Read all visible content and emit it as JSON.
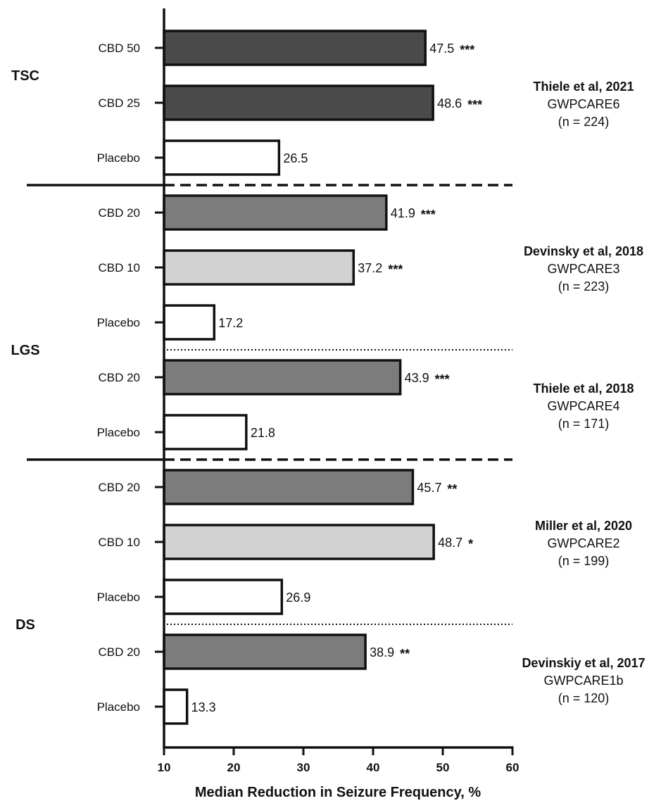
{
  "chart_data": {
    "type": "bar",
    "orientation": "horizontal",
    "xlabel": "Median Reduction in Seizure Frequency, %",
    "xlim": [
      10,
      60
    ],
    "xticks": [
      "10",
      "20",
      "30",
      "40",
      "50",
      "60"
    ],
    "bar_colors": {
      "high": "#4a4a4a",
      "mid": "#7c7c7c",
      "light": "#d2d2d2",
      "placebo": "#ffffff"
    },
    "groups": [
      {
        "label": "TSC",
        "studies": [
          {
            "author": "Thiele et al, 2021",
            "trial": "GWPCARE6",
            "n": "(n = 224)",
            "bars": [
              {
                "category": "CBD 50",
                "value": 47.5,
                "value_label": "47.5",
                "sig": "***",
                "fill": "high"
              },
              {
                "category": "CBD 25",
                "value": 48.6,
                "value_label": "48.6",
                "sig": "***",
                "fill": "high"
              },
              {
                "category": "Placebo",
                "value": 26.5,
                "value_label": "26.5",
                "sig": "",
                "fill": "placebo"
              }
            ]
          }
        ]
      },
      {
        "label": "LGS",
        "studies": [
          {
            "author": "Devinsky et al, 2018",
            "trial": "GWPCARE3",
            "n": "(n = 223)",
            "bars": [
              {
                "category": "CBD 20",
                "value": 41.9,
                "value_label": "41.9",
                "sig": "***",
                "fill": "mid"
              },
              {
                "category": "CBD 10",
                "value": 37.2,
                "value_label": "37.2",
                "sig": "***",
                "fill": "light"
              },
              {
                "category": "Placebo",
                "value": 17.2,
                "value_label": "17.2",
                "sig": "",
                "fill": "placebo"
              }
            ]
          },
          {
            "author": "Thiele et al, 2018",
            "trial": "GWPCARE4",
            "n": "(n = 171)",
            "bars": [
              {
                "category": "CBD 20",
                "value": 43.9,
                "value_label": "43.9",
                "sig": "***",
                "fill": "mid"
              },
              {
                "category": "Placebo",
                "value": 21.8,
                "value_label": "21.8",
                "sig": "",
                "fill": "placebo"
              }
            ]
          }
        ]
      },
      {
        "label": "DS",
        "studies": [
          {
            "author": "Miller et al, 2020",
            "trial": "GWPCARE2",
            "n": "(n = 199)",
            "bars": [
              {
                "category": "CBD 20",
                "value": 45.7,
                "value_label": "45.7",
                "sig": "**",
                "fill": "mid"
              },
              {
                "category": "CBD 10",
                "value": 48.7,
                "value_label": "48.7",
                "sig": "*",
                "fill": "light"
              },
              {
                "category": "Placebo",
                "value": 26.9,
                "value_label": "26.9",
                "sig": "",
                "fill": "placebo"
              }
            ]
          },
          {
            "author": "Devinskiy et al, 2017",
            "trial": "GWPCARE1b",
            "n": "(n = 120)",
            "bars": [
              {
                "category": "CBD 20",
                "value": 38.9,
                "value_label": "38.9",
                "sig": "**",
                "fill": "mid"
              },
              {
                "category": "Placebo",
                "value": 13.3,
                "value_label": "13.3",
                "sig": "",
                "fill": "placebo"
              }
            ]
          }
        ]
      }
    ]
  }
}
